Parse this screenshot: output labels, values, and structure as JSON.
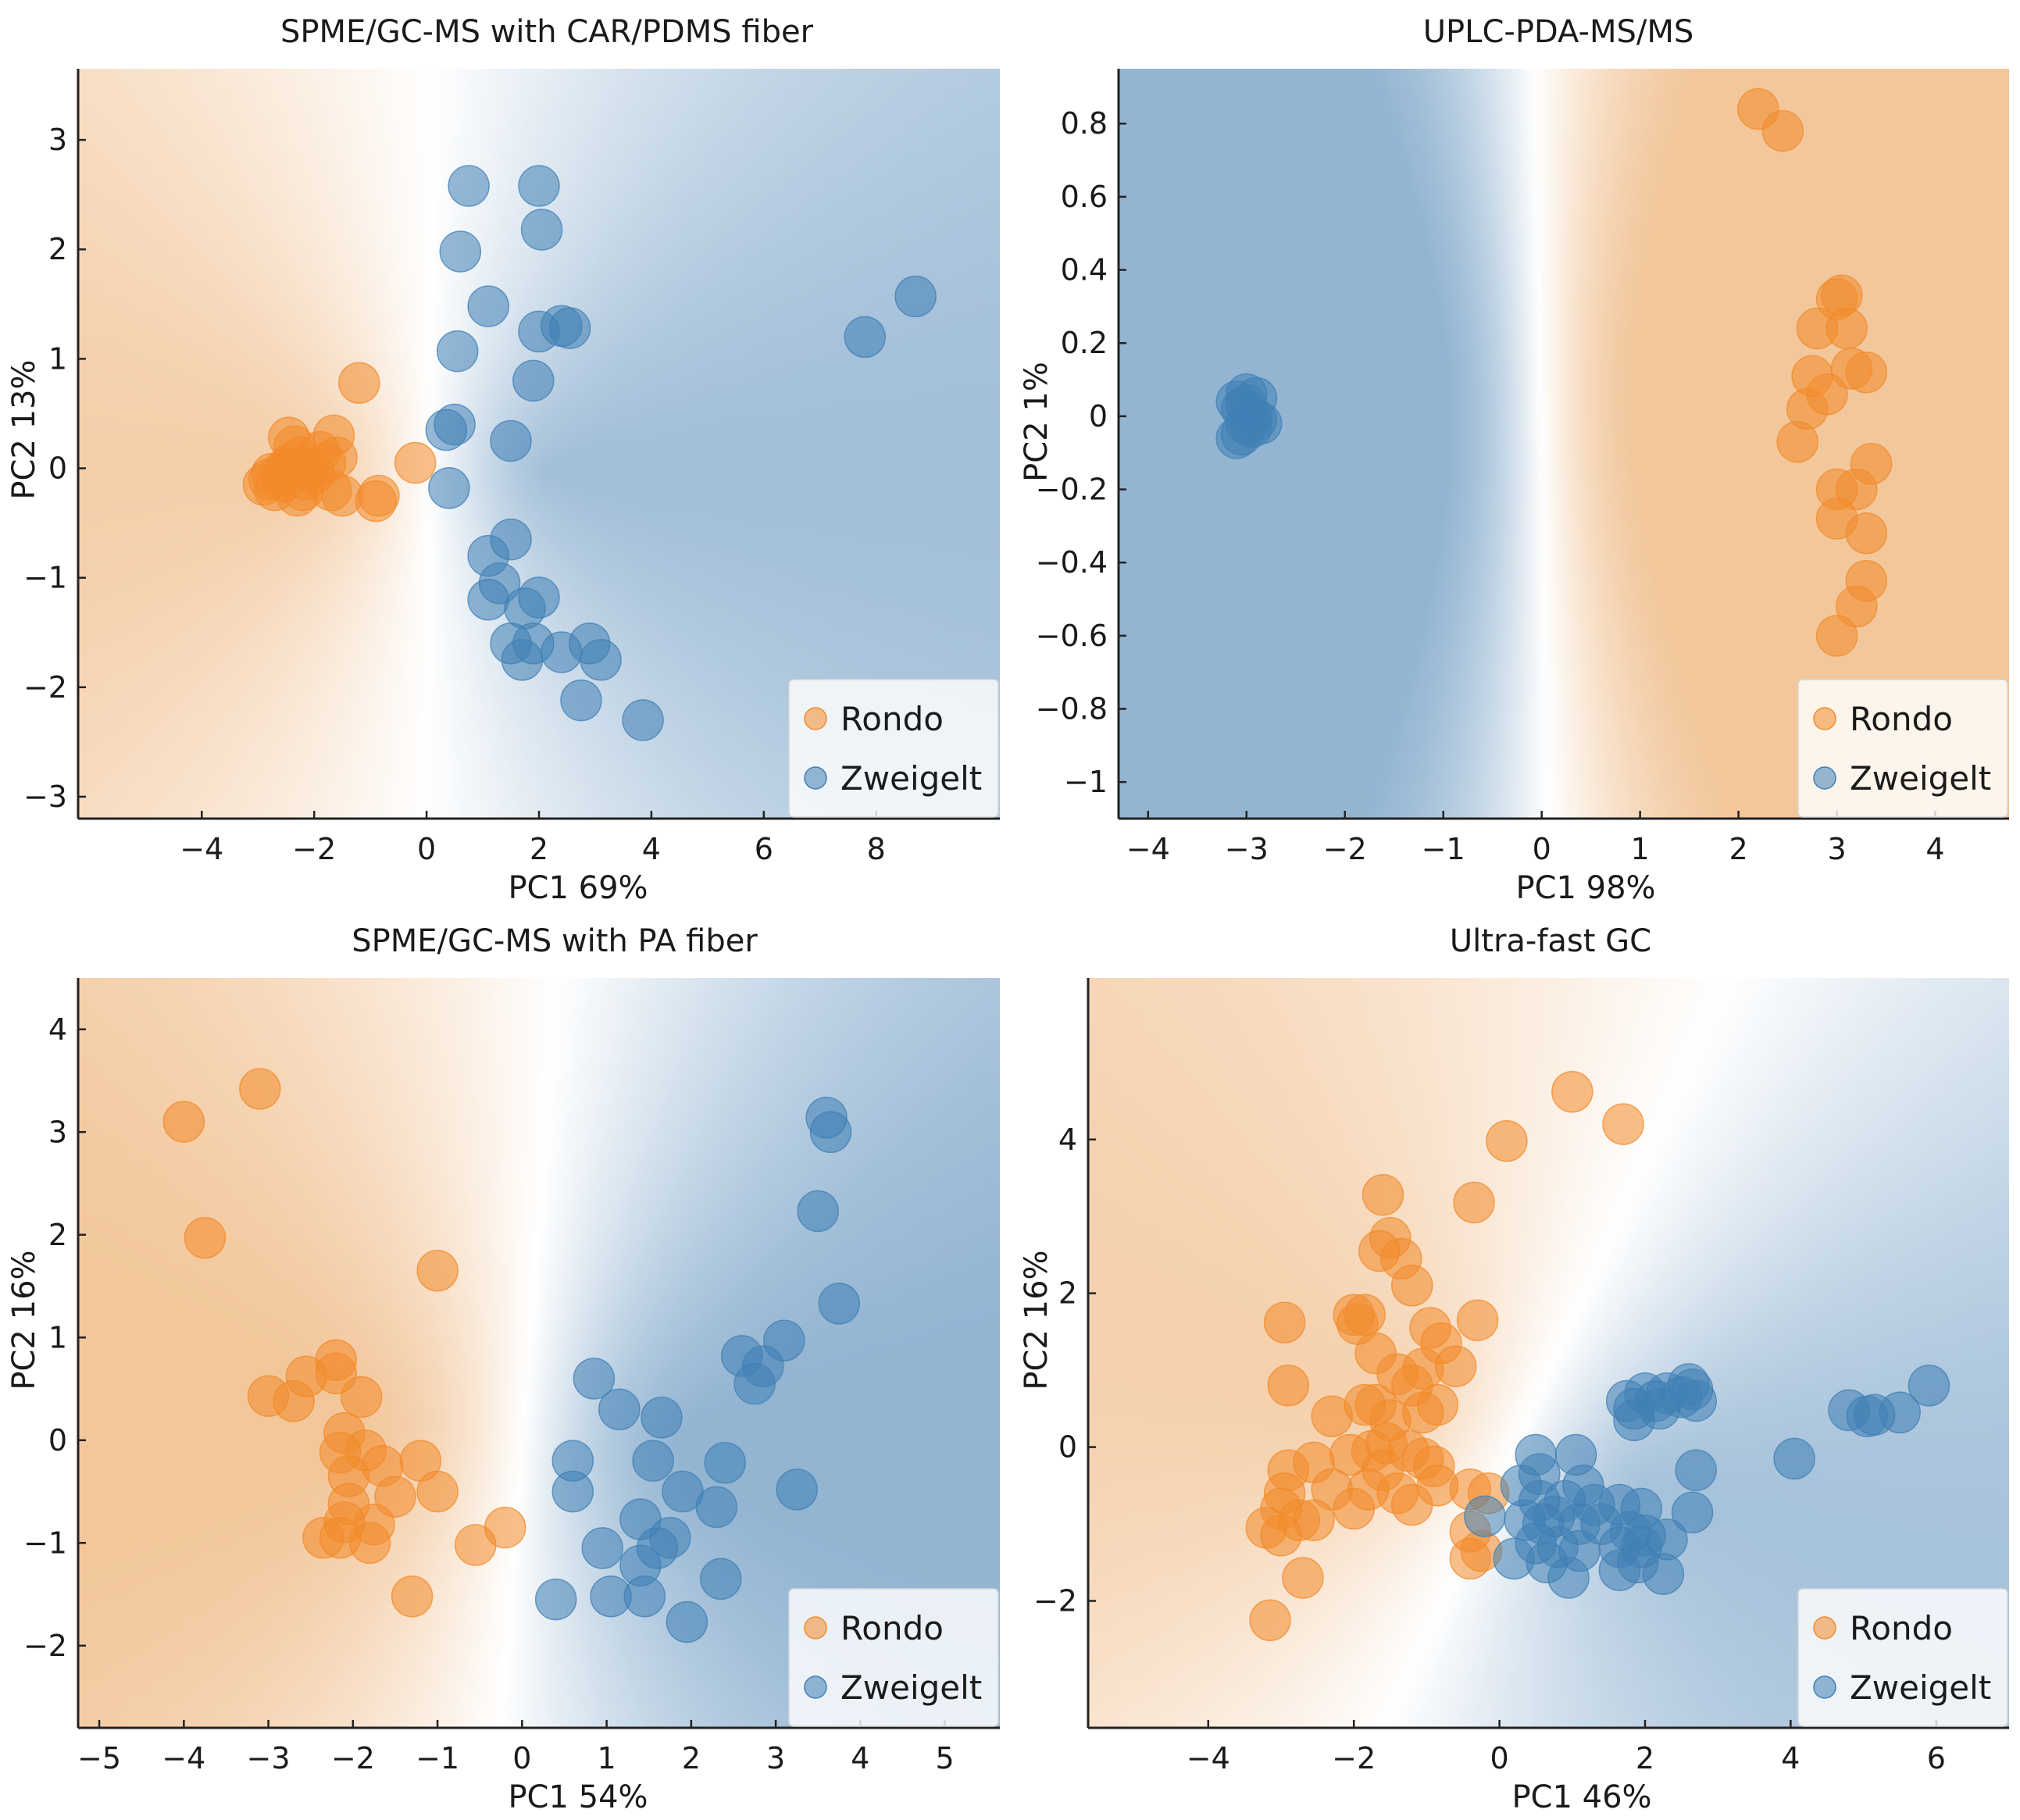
{
  "figure": {
    "background": "#ffffff"
  },
  "colors": {
    "rondo": "#f28a2a",
    "zweigelt": "#3f7fb5",
    "rondo_bg": "#eaa35c",
    "zweigelt_bg": "#4f86b6"
  },
  "legend": {
    "labels": [
      "Rondo",
      "Zweigelt"
    ],
    "placement": "lower-right"
  },
  "chart_data": [
    {
      "type": "scatter",
      "title": "SPME/GC-MS with CAR/PDMS fiber",
      "xlabel": "PC1 69%",
      "ylabel": "PC2 13%",
      "xlim": [
        -6.2,
        10.2
      ],
      "ylim": [
        -3.2,
        3.65
      ],
      "xticks": [
        -4,
        -2,
        0,
        2,
        4,
        6,
        8
      ],
      "yticks": [
        -3,
        -2,
        -1,
        0,
        1,
        2,
        3
      ],
      "series": [
        {
          "name": "Rondo",
          "points": [
            [
              -2.9,
              -0.15
            ],
            [
              -2.8,
              -0.1
            ],
            [
              -2.7,
              -0.2
            ],
            [
              -2.6,
              -0.05
            ],
            [
              -2.5,
              0.0
            ],
            [
              -2.4,
              0.05
            ],
            [
              -2.35,
              0.2
            ],
            [
              -2.25,
              0.1
            ],
            [
              -2.15,
              -0.1
            ],
            [
              -2.3,
              -0.25
            ],
            [
              -2.1,
              0.0
            ],
            [
              -2.0,
              -0.05
            ],
            [
              -1.9,
              0.15
            ],
            [
              -1.8,
              0.05
            ],
            [
              -1.7,
              -0.2
            ],
            [
              -1.6,
              0.1
            ],
            [
              -1.65,
              0.3
            ],
            [
              -1.5,
              -0.25
            ],
            [
              -1.2,
              0.78
            ],
            [
              -0.9,
              -0.3
            ],
            [
              -0.85,
              -0.25
            ],
            [
              -0.2,
              0.05
            ],
            [
              -2.45,
              0.28
            ],
            [
              -2.55,
              -0.12
            ],
            [
              -2.75,
              -0.05
            ],
            [
              -2.2,
              -0.2
            ]
          ]
        },
        {
          "name": "Zweigelt",
          "points": [
            [
              0.75,
              2.58
            ],
            [
              2.0,
              2.58
            ],
            [
              0.6,
              1.98
            ],
            [
              2.05,
              2.18
            ],
            [
              1.1,
              1.48
            ],
            [
              2.0,
              1.25
            ],
            [
              2.4,
              1.3
            ],
            [
              2.55,
              1.28
            ],
            [
              0.55,
              1.07
            ],
            [
              1.9,
              0.8
            ],
            [
              0.5,
              0.4
            ],
            [
              0.35,
              0.35
            ],
            [
              1.5,
              0.25
            ],
            [
              0.4,
              -0.18
            ],
            [
              1.5,
              -0.65
            ],
            [
              1.1,
              -0.8
            ],
            [
              1.3,
              -1.05
            ],
            [
              1.1,
              -1.2
            ],
            [
              1.75,
              -1.28
            ],
            [
              2.0,
              -1.18
            ],
            [
              1.5,
              -1.6
            ],
            [
              1.9,
              -1.6
            ],
            [
              1.7,
              -1.75
            ],
            [
              2.4,
              -1.68
            ],
            [
              2.9,
              -1.6
            ],
            [
              3.1,
              -1.75
            ],
            [
              2.75,
              -2.12
            ],
            [
              3.85,
              -2.3
            ],
            [
              7.8,
              1.2
            ],
            [
              8.7,
              1.57
            ]
          ]
        }
      ]
    },
    {
      "type": "scatter",
      "title": "UPLC-PDA-MS/MS",
      "xlabel": "PC1 98%",
      "ylabel": "PC2 1%",
      "xlim": [
        -4.3,
        4.75
      ],
      "ylim": [
        -1.1,
        0.95
      ],
      "xticks": [
        -4,
        -3,
        -2,
        -1,
        0,
        1,
        2,
        3,
        4
      ],
      "yticks": [
        -1.0,
        -0.8,
        -0.6,
        -0.4,
        -0.2,
        0.0,
        0.2,
        0.4,
        0.6,
        0.8
      ],
      "series": [
        {
          "name": "Rondo",
          "points": [
            [
              2.2,
              0.84
            ],
            [
              2.45,
              0.78
            ],
            [
              3.0,
              0.32
            ],
            [
              3.05,
              0.33
            ],
            [
              2.8,
              0.24
            ],
            [
              3.1,
              0.24
            ],
            [
              2.75,
              0.11
            ],
            [
              3.15,
              0.13
            ],
            [
              3.3,
              0.12
            ],
            [
              2.9,
              0.06
            ],
            [
              2.7,
              0.02
            ],
            [
              2.6,
              -0.07
            ],
            [
              3.35,
              -0.13
            ],
            [
              3.0,
              -0.2
            ],
            [
              3.2,
              -0.2
            ],
            [
              3.0,
              -0.28
            ],
            [
              3.3,
              -0.32
            ],
            [
              3.3,
              -0.45
            ],
            [
              3.2,
              -0.52
            ],
            [
              3.0,
              -0.6
            ]
          ]
        },
        {
          "name": "Zweigelt",
          "points": [
            [
              -3.1,
              0.04
            ],
            [
              -3.0,
              0.06
            ],
            [
              -2.9,
              0.05
            ],
            [
              -3.05,
              0.02
            ],
            [
              -2.95,
              0.0
            ],
            [
              -3.0,
              -0.02
            ],
            [
              -2.9,
              -0.01
            ],
            [
              -3.05,
              -0.05
            ],
            [
              -3.1,
              -0.06
            ],
            [
              -2.95,
              -0.03
            ],
            [
              -3.0,
              0.03
            ],
            [
              -2.85,
              -0.02
            ]
          ]
        }
      ]
    },
    {
      "type": "scatter",
      "title": "SPME/GC-MS with PA fiber",
      "xlabel": "PC1 54%",
      "ylabel": "PC2 16%",
      "xlim": [
        -5.25,
        5.65
      ],
      "ylim": [
        -2.8,
        4.5
      ],
      "xticks": [
        -5,
        -4,
        -3,
        -2,
        -1,
        0,
        1,
        2,
        3,
        4,
        5
      ],
      "yticks": [
        -2,
        -1,
        0,
        1,
        2,
        3,
        4
      ],
      "series": [
        {
          "name": "Rondo",
          "points": [
            [
              -4.0,
              3.1
            ],
            [
              -3.1,
              3.42
            ],
            [
              -3.75,
              1.97
            ],
            [
              -1.0,
              1.65
            ],
            [
              -3.0,
              0.43
            ],
            [
              -2.7,
              0.38
            ],
            [
              -2.55,
              0.62
            ],
            [
              -2.2,
              0.78
            ],
            [
              -2.2,
              0.65
            ],
            [
              -1.9,
              0.42
            ],
            [
              -2.1,
              0.07
            ],
            [
              -2.15,
              -0.12
            ],
            [
              -1.85,
              -0.1
            ],
            [
              -2.05,
              -0.35
            ],
            [
              -1.65,
              -0.25
            ],
            [
              -1.2,
              -0.2
            ],
            [
              -1.5,
              -0.55
            ],
            [
              -1.0,
              -0.5
            ],
            [
              -2.05,
              -0.62
            ],
            [
              -2.1,
              -0.8
            ],
            [
              -1.75,
              -0.82
            ],
            [
              -2.35,
              -0.95
            ],
            [
              -2.15,
              -0.95
            ],
            [
              -1.8,
              -1.0
            ],
            [
              -0.55,
              -1.02
            ],
            [
              -0.2,
              -0.85
            ],
            [
              -1.3,
              -1.52
            ]
          ]
        },
        {
          "name": "Zweigelt",
          "points": [
            [
              3.6,
              3.14
            ],
            [
              3.65,
              3.0
            ],
            [
              3.5,
              2.23
            ],
            [
              3.75,
              1.33
            ],
            [
              3.1,
              0.97
            ],
            [
              2.6,
              0.82
            ],
            [
              2.85,
              0.72
            ],
            [
              2.75,
              0.55
            ],
            [
              0.85,
              0.6
            ],
            [
              1.15,
              0.3
            ],
            [
              1.65,
              0.22
            ],
            [
              0.6,
              -0.2
            ],
            [
              1.55,
              -0.2
            ],
            [
              0.6,
              -0.5
            ],
            [
              1.9,
              -0.5
            ],
            [
              2.4,
              -0.22
            ],
            [
              2.3,
              -0.65
            ],
            [
              3.25,
              -0.48
            ],
            [
              1.4,
              -0.77
            ],
            [
              1.75,
              -0.95
            ],
            [
              1.6,
              -1.05
            ],
            [
              1.4,
              -1.22
            ],
            [
              0.95,
              -1.05
            ],
            [
              2.35,
              -1.35
            ],
            [
              0.4,
              -1.55
            ],
            [
              1.05,
              -1.52
            ],
            [
              1.45,
              -1.52
            ],
            [
              1.95,
              -1.77
            ]
          ]
        }
      ]
    },
    {
      "type": "scatter",
      "title": "Ultra-fast GC",
      "xlabel": "PC1 46%",
      "ylabel": "PC2 16%",
      "xlim": [
        -5.65,
        7.0
      ],
      "ylim": [
        -3.65,
        6.1
      ],
      "xticks": [
        -4,
        -2,
        0,
        2,
        4,
        6
      ],
      "yticks": [
        -2,
        0,
        2,
        4
      ],
      "series": [
        {
          "name": "Rondo",
          "points": [
            [
              1.0,
              4.62
            ],
            [
              1.7,
              4.2
            ],
            [
              0.1,
              3.98
            ],
            [
              -0.35,
              3.18
            ],
            [
              -1.6,
              3.28
            ],
            [
              -1.5,
              2.72
            ],
            [
              -1.65,
              2.55
            ],
            [
              -1.35,
              2.45
            ],
            [
              -1.2,
              2.1
            ],
            [
              -2.0,
              1.72
            ],
            [
              -1.85,
              1.72
            ],
            [
              -1.95,
              1.6
            ],
            [
              -2.95,
              1.62
            ],
            [
              -1.7,
              1.22
            ],
            [
              -0.95,
              1.55
            ],
            [
              -0.3,
              1.65
            ],
            [
              -0.8,
              1.35
            ],
            [
              -1.05,
              1.02
            ],
            [
              -0.6,
              1.05
            ],
            [
              -1.4,
              0.95
            ],
            [
              -1.2,
              0.8
            ],
            [
              -2.9,
              0.8
            ],
            [
              -1.7,
              0.55
            ],
            [
              -1.85,
              0.55
            ],
            [
              -1.5,
              0.35
            ],
            [
              -0.85,
              0.55
            ],
            [
              -1.05,
              0.45
            ],
            [
              -2.3,
              0.4
            ],
            [
              -1.55,
              0.05
            ],
            [
              -1.75,
              -0.05
            ],
            [
              -1.25,
              -0.05
            ],
            [
              -1.05,
              -0.15
            ],
            [
              -0.9,
              -0.25
            ],
            [
              -2.05,
              -0.1
            ],
            [
              -2.55,
              -0.2
            ],
            [
              -2.9,
              -0.3
            ],
            [
              -2.95,
              -0.6
            ],
            [
              -2.3,
              -0.55
            ],
            [
              -1.8,
              -0.55
            ],
            [
              -1.4,
              -0.6
            ],
            [
              -1.2,
              -0.75
            ],
            [
              -2.0,
              -0.8
            ],
            [
              -3.0,
              -0.8
            ],
            [
              -2.75,
              -0.95
            ],
            [
              -2.55,
              -0.95
            ],
            [
              -3.2,
              -1.05
            ],
            [
              -3.0,
              -1.15
            ],
            [
              -0.4,
              -1.1
            ],
            [
              -0.25,
              -1.35
            ],
            [
              -0.4,
              -0.55
            ],
            [
              -0.15,
              -0.6
            ],
            [
              -0.4,
              -1.45
            ],
            [
              -2.7,
              -1.7
            ],
            [
              -3.15,
              -2.25
            ],
            [
              -0.85,
              -0.5
            ],
            [
              -1.6,
              -0.3
            ]
          ]
        },
        {
          "name": "Zweigelt",
          "points": [
            [
              1.75,
              0.6
            ],
            [
              1.85,
              0.5
            ],
            [
              2.0,
              0.7
            ],
            [
              2.15,
              0.6
            ],
            [
              2.3,
              0.7
            ],
            [
              2.5,
              0.65
            ],
            [
              2.65,
              0.75
            ],
            [
              2.7,
              0.6
            ],
            [
              2.6,
              0.82
            ],
            [
              2.2,
              0.5
            ],
            [
              1.85,
              0.35
            ],
            [
              0.5,
              -0.1
            ],
            [
              1.05,
              -0.1
            ],
            [
              0.55,
              -0.35
            ],
            [
              1.15,
              -0.5
            ],
            [
              0.3,
              -0.5
            ],
            [
              0.55,
              -0.7
            ],
            [
              0.9,
              -0.7
            ],
            [
              1.3,
              -0.75
            ],
            [
              1.65,
              -0.75
            ],
            [
              1.95,
              -0.8
            ],
            [
              2.65,
              -0.85
            ],
            [
              2.7,
              -0.3
            ],
            [
              0.35,
              -0.95
            ],
            [
              0.6,
              -1.0
            ],
            [
              0.75,
              -0.9
            ],
            [
              1.1,
              -1.0
            ],
            [
              1.4,
              -1.0
            ],
            [
              1.8,
              -1.1
            ],
            [
              2.0,
              -1.15
            ],
            [
              2.3,
              -1.2
            ],
            [
              1.95,
              -1.3
            ],
            [
              0.5,
              -1.25
            ],
            [
              0.8,
              -1.3
            ],
            [
              1.1,
              -1.35
            ],
            [
              1.65,
              -1.3
            ],
            [
              0.2,
              -1.45
            ],
            [
              0.65,
              -1.5
            ],
            [
              1.9,
              -1.5
            ],
            [
              1.65,
              -1.6
            ],
            [
              0.95,
              -1.7
            ],
            [
              2.25,
              -1.65
            ],
            [
              -0.2,
              -0.9
            ],
            [
              4.05,
              -0.15
            ],
            [
              4.8,
              0.48
            ],
            [
              5.05,
              0.4
            ],
            [
              5.15,
              0.42
            ],
            [
              5.5,
              0.45
            ],
            [
              5.9,
              0.8
            ]
          ]
        }
      ]
    }
  ]
}
